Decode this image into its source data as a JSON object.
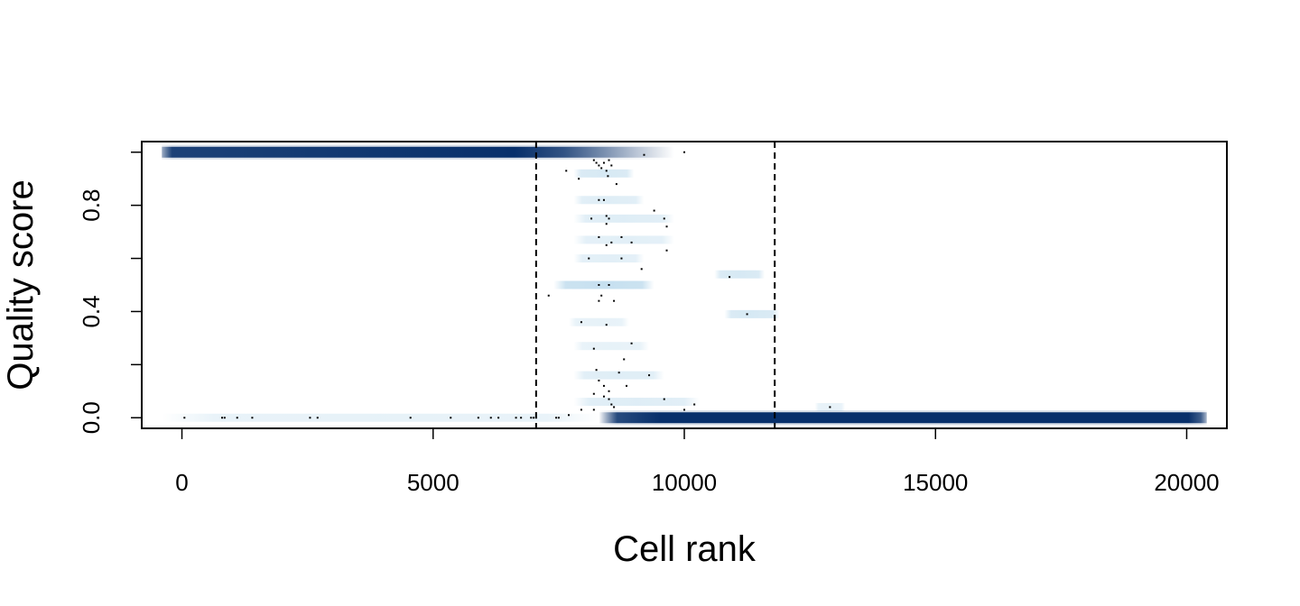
{
  "chart_data": {
    "type": "scatter",
    "title": "",
    "xlabel": "Cell rank",
    "ylabel": "Quality score",
    "xlim": [
      -800,
      20800
    ],
    "ylim": [
      -0.04,
      1.04
    ],
    "x_ticks": [
      0,
      5000,
      10000,
      15000,
      20000
    ],
    "x_tick_labels": [
      "0",
      "5000",
      "10000",
      "15000",
      "20000"
    ],
    "y_ticks": [
      0.0,
      0.2,
      0.4,
      0.6,
      0.8,
      1.0
    ],
    "y_tick_labels": [
      "0.0",
      "",
      "0.4",
      "",
      "0.8",
      ""
    ],
    "grid": false,
    "legend": "none",
    "vlines": [
      7050,
      11800
    ],
    "density_color": "#08306b",
    "density_light_color": "#c6dbef",
    "density_bands": [
      {
        "x0": -400,
        "x1": 9800,
        "y": 1.0,
        "intensity": 1.0,
        "fade_start": 7000
      },
      {
        "x0": 8300,
        "x1": 20400,
        "y": 0.0,
        "intensity": 1.0,
        "fade_start": 8300
      },
      {
        "x0": -400,
        "x1": 8300,
        "y": 0.0,
        "intensity": 0.15,
        "fade_start": -400
      },
      {
        "x0": 7400,
        "x1": 9400,
        "y": 0.5,
        "intensity": 0.35,
        "fade_start": 7400
      },
      {
        "x0": 7800,
        "x1": 9000,
        "y": 0.92,
        "intensity": 0.25,
        "fade_start": 7800
      },
      {
        "x0": 7800,
        "x1": 9200,
        "y": 0.82,
        "intensity": 0.2,
        "fade_start": 7800
      },
      {
        "x0": 7800,
        "x1": 9800,
        "y": 0.75,
        "intensity": 0.2,
        "fade_start": 7800
      },
      {
        "x0": 7800,
        "x1": 9800,
        "y": 0.67,
        "intensity": 0.18,
        "fade_start": 7800
      },
      {
        "x0": 7800,
        "x1": 9200,
        "y": 0.6,
        "intensity": 0.18,
        "fade_start": 7800
      },
      {
        "x0": 10600,
        "x1": 11600,
        "y": 0.54,
        "intensity": 0.25,
        "fade_start": 10600
      },
      {
        "x0": 10800,
        "x1": 11900,
        "y": 0.39,
        "intensity": 0.25,
        "fade_start": 10800
      },
      {
        "x0": 7700,
        "x1": 8900,
        "y": 0.36,
        "intensity": 0.15,
        "fade_start": 7700
      },
      {
        "x0": 7800,
        "x1": 9300,
        "y": 0.27,
        "intensity": 0.15,
        "fade_start": 7800
      },
      {
        "x0": 7800,
        "x1": 9600,
        "y": 0.16,
        "intensity": 0.2,
        "fade_start": 7800
      },
      {
        "x0": 7800,
        "x1": 10300,
        "y": 0.06,
        "intensity": 0.2,
        "fade_start": 7800
      },
      {
        "x0": 12600,
        "x1": 13200,
        "y": 0.04,
        "intensity": 0.15,
        "fade_start": 12600
      }
    ],
    "outlier_points": [
      [
        50,
        0.0
      ],
      [
        800,
        0.0
      ],
      [
        850,
        0.0
      ],
      [
        1100,
        0.0
      ],
      [
        1400,
        0.0
      ],
      [
        2550,
        0.0
      ],
      [
        2700,
        0.0
      ],
      [
        4550,
        0.0
      ],
      [
        5350,
        0.0
      ],
      [
        5900,
        0.0
      ],
      [
        6150,
        0.0
      ],
      [
        6300,
        0.0
      ],
      [
        6650,
        0.0
      ],
      [
        6750,
        0.0
      ],
      [
        6950,
        0.0
      ],
      [
        7000,
        0.0
      ],
      [
        7050,
        0.0
      ],
      [
        7450,
        0.0
      ],
      [
        7500,
        0.0
      ],
      [
        9200,
        0.99
      ],
      [
        10000,
        1.0
      ],
      [
        7650,
        0.93
      ],
      [
        7900,
        0.9
      ],
      [
        8200,
        0.97
      ],
      [
        8250,
        0.96
      ],
      [
        8300,
        0.95
      ],
      [
        8350,
        0.94
      ],
      [
        8400,
        0.96
      ],
      [
        8450,
        0.93
      ],
      [
        8500,
        0.97
      ],
      [
        8550,
        0.95
      ],
      [
        8480,
        0.91
      ],
      [
        8650,
        0.88
      ],
      [
        8300,
        0.82
      ],
      [
        8400,
        0.82
      ],
      [
        8450,
        0.76
      ],
      [
        8450,
        0.73
      ],
      [
        8500,
        0.75
      ],
      [
        8150,
        0.75
      ],
      [
        9400,
        0.78
      ],
      [
        9600,
        0.75
      ],
      [
        9650,
        0.72
      ],
      [
        8300,
        0.68
      ],
      [
        8450,
        0.65
      ],
      [
        8550,
        0.66
      ],
      [
        8750,
        0.68
      ],
      [
        8950,
        0.66
      ],
      [
        9650,
        0.63
      ],
      [
        8100,
        0.6
      ],
      [
        8750,
        0.6
      ],
      [
        9150,
        0.56
      ],
      [
        10900,
        0.53
      ],
      [
        8300,
        0.5
      ],
      [
        8500,
        0.5
      ],
      [
        8350,
        0.46
      ],
      [
        8600,
        0.44
      ],
      [
        7300,
        0.46
      ],
      [
        8300,
        0.44
      ],
      [
        11250,
        0.39
      ],
      [
        7950,
        0.36
      ],
      [
        8450,
        0.35
      ],
      [
        8200,
        0.26
      ],
      [
        8950,
        0.28
      ],
      [
        8800,
        0.22
      ],
      [
        8250,
        0.18
      ],
      [
        8700,
        0.17
      ],
      [
        9300,
        0.16
      ],
      [
        8300,
        0.14
      ],
      [
        8400,
        0.12
      ],
      [
        8500,
        0.1
      ],
      [
        8850,
        0.12
      ],
      [
        8200,
        0.09
      ],
      [
        8400,
        0.08
      ],
      [
        8500,
        0.07
      ],
      [
        8550,
        0.05
      ],
      [
        7950,
        0.03
      ],
      [
        8200,
        0.03
      ],
      [
        9600,
        0.07
      ],
      [
        10000,
        0.03
      ],
      [
        10200,
        0.05
      ],
      [
        12900,
        0.04
      ],
      [
        7700,
        0.01
      ],
      [
        8600,
        0.04
      ]
    ]
  }
}
